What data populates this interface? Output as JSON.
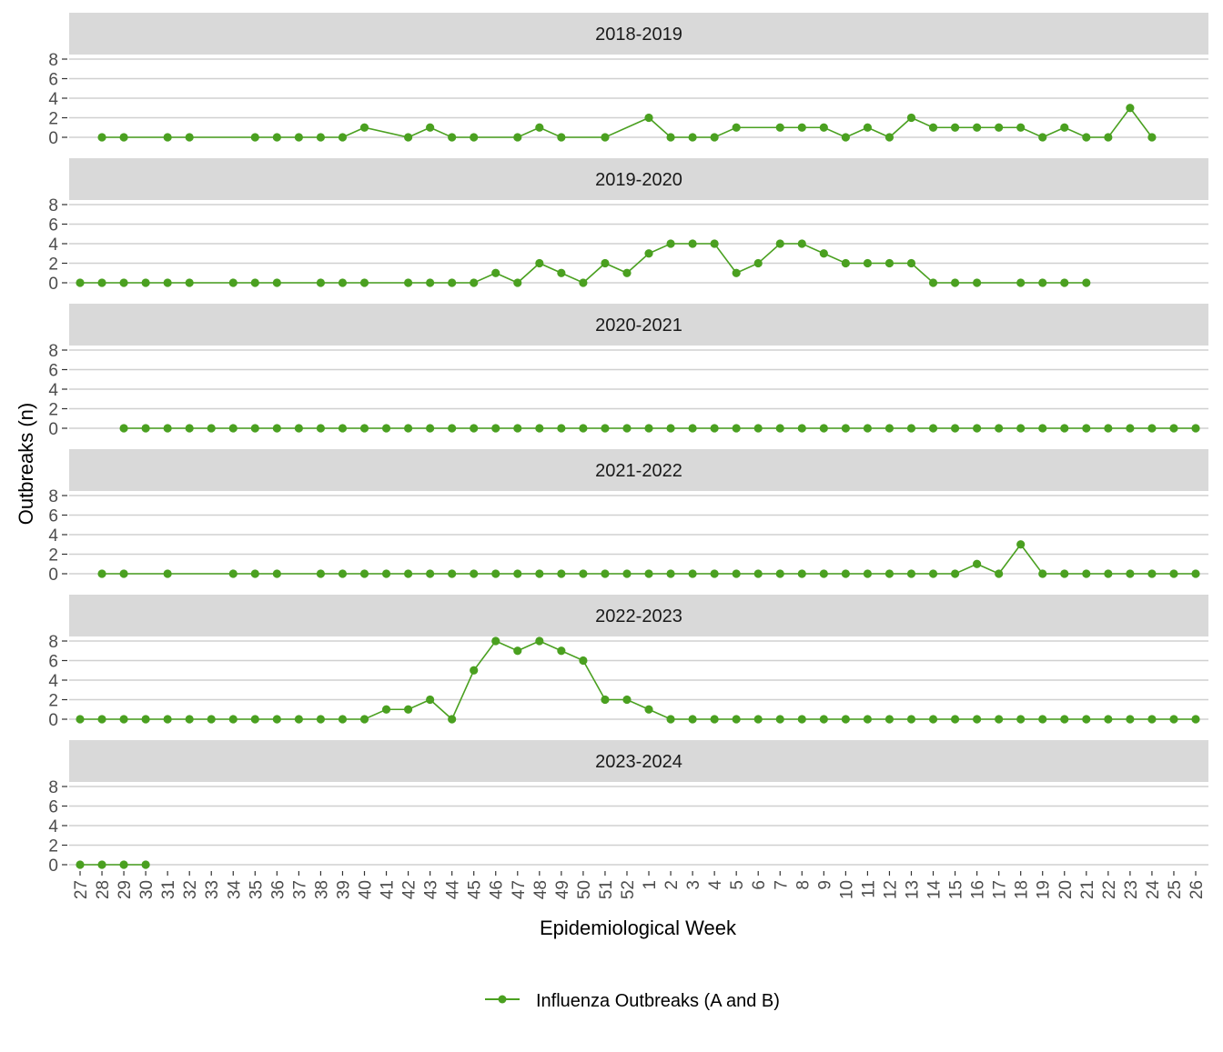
{
  "chart_data": {
    "type": "line",
    "layout": "faceted",
    "xlabel": "Epidemiological Week",
    "ylabel": "Outbreaks (n)",
    "yticks": [
      0,
      2,
      4,
      6,
      8
    ],
    "ylim": [
      0,
      8
    ],
    "x_categories": [
      "27",
      "28",
      "29",
      "30",
      "31",
      "32",
      "33",
      "34",
      "35",
      "36",
      "37",
      "38",
      "39",
      "40",
      "41",
      "42",
      "43",
      "44",
      "45",
      "46",
      "47",
      "48",
      "49",
      "50",
      "51",
      "52",
      "1",
      "2",
      "3",
      "4",
      "5",
      "6",
      "7",
      "8",
      "9",
      "10",
      "11",
      "12",
      "13",
      "14",
      "15",
      "16",
      "17",
      "18",
      "19",
      "20",
      "21",
      "22",
      "23",
      "24",
      "25",
      "26"
    ],
    "grid": true,
    "legend": {
      "position": "bottom",
      "entries": [
        {
          "label": "Influenza Outbreaks (A and B)",
          "color": "#4aa020"
        }
      ]
    },
    "series_color": "#4aa020",
    "facets": [
      {
        "season": "2018-2019",
        "points": [
          [
            "28",
            0
          ],
          [
            "29",
            0
          ],
          [
            "31",
            0
          ],
          [
            "32",
            0
          ],
          [
            "35",
            0
          ],
          [
            "36",
            0
          ],
          [
            "37",
            0
          ],
          [
            "38",
            0
          ],
          [
            "39",
            0
          ],
          [
            "40",
            1
          ],
          [
            "42",
            0
          ],
          [
            "43",
            1
          ],
          [
            "44",
            0
          ],
          [
            "45",
            0
          ],
          [
            "47",
            0
          ],
          [
            "48",
            1
          ],
          [
            "49",
            0
          ],
          [
            "51",
            0
          ],
          [
            "1",
            2
          ],
          [
            "2",
            0
          ],
          [
            "3",
            0
          ],
          [
            "4",
            0
          ],
          [
            "5",
            1
          ],
          [
            "7",
            1
          ],
          [
            "8",
            1
          ],
          [
            "9",
            1
          ],
          [
            "10",
            0
          ],
          [
            "11",
            1
          ],
          [
            "12",
            0
          ],
          [
            "13",
            2
          ],
          [
            "14",
            1
          ],
          [
            "15",
            1
          ],
          [
            "16",
            1
          ],
          [
            "17",
            1
          ],
          [
            "18",
            1
          ],
          [
            "19",
            0
          ],
          [
            "20",
            1
          ],
          [
            "21",
            0
          ],
          [
            "22",
            0
          ],
          [
            "23",
            3
          ],
          [
            "24",
            0
          ]
        ]
      },
      {
        "season": "2019-2020",
        "points": [
          [
            "27",
            0
          ],
          [
            "28",
            0
          ],
          [
            "29",
            0
          ],
          [
            "30",
            0
          ],
          [
            "31",
            0
          ],
          [
            "32",
            0
          ],
          [
            "34",
            0
          ],
          [
            "35",
            0
          ],
          [
            "36",
            0
          ],
          [
            "38",
            0
          ],
          [
            "39",
            0
          ],
          [
            "40",
            0
          ],
          [
            "42",
            0
          ],
          [
            "43",
            0
          ],
          [
            "44",
            0
          ],
          [
            "45",
            0
          ],
          [
            "46",
            1
          ],
          [
            "47",
            0
          ],
          [
            "48",
            2
          ],
          [
            "49",
            1
          ],
          [
            "50",
            0
          ],
          [
            "51",
            2
          ],
          [
            "52",
            1
          ],
          [
            "1",
            3
          ],
          [
            "2",
            4
          ],
          [
            "3",
            4
          ],
          [
            "4",
            4
          ],
          [
            "5",
            1
          ],
          [
            "6",
            2
          ],
          [
            "7",
            4
          ],
          [
            "8",
            4
          ],
          [
            "9",
            3
          ],
          [
            "10",
            2
          ],
          [
            "11",
            2
          ],
          [
            "12",
            2
          ],
          [
            "13",
            2
          ],
          [
            "14",
            0
          ],
          [
            "15",
            0
          ],
          [
            "16",
            0
          ],
          [
            "18",
            0
          ],
          [
            "19",
            0
          ],
          [
            "20",
            0
          ],
          [
            "21",
            0
          ]
        ]
      },
      {
        "season": "2020-2021",
        "points": [
          [
            "29",
            0
          ],
          [
            "30",
            0
          ],
          [
            "31",
            0
          ],
          [
            "32",
            0
          ],
          [
            "33",
            0
          ],
          [
            "34",
            0
          ],
          [
            "35",
            0
          ],
          [
            "36",
            0
          ],
          [
            "37",
            0
          ],
          [
            "38",
            0
          ],
          [
            "39",
            0
          ],
          [
            "40",
            0
          ],
          [
            "41",
            0
          ],
          [
            "42",
            0
          ],
          [
            "43",
            0
          ],
          [
            "44",
            0
          ],
          [
            "45",
            0
          ],
          [
            "46",
            0
          ],
          [
            "47",
            0
          ],
          [
            "48",
            0
          ],
          [
            "49",
            0
          ],
          [
            "50",
            0
          ],
          [
            "51",
            0
          ],
          [
            "52",
            0
          ],
          [
            "1",
            0
          ],
          [
            "2",
            0
          ],
          [
            "3",
            0
          ],
          [
            "4",
            0
          ],
          [
            "5",
            0
          ],
          [
            "6",
            0
          ],
          [
            "7",
            0
          ],
          [
            "8",
            0
          ],
          [
            "9",
            0
          ],
          [
            "10",
            0
          ],
          [
            "11",
            0
          ],
          [
            "12",
            0
          ],
          [
            "13",
            0
          ],
          [
            "14",
            0
          ],
          [
            "15",
            0
          ],
          [
            "16",
            0
          ],
          [
            "17",
            0
          ],
          [
            "18",
            0
          ],
          [
            "19",
            0
          ],
          [
            "20",
            0
          ],
          [
            "21",
            0
          ],
          [
            "22",
            0
          ],
          [
            "23",
            0
          ],
          [
            "24",
            0
          ],
          [
            "25",
            0
          ],
          [
            "26",
            0
          ]
        ]
      },
      {
        "season": "2021-2022",
        "points": [
          [
            "28",
            0
          ],
          [
            "29",
            0
          ],
          [
            "31",
            0
          ],
          [
            "34",
            0
          ],
          [
            "35",
            0
          ],
          [
            "36",
            0
          ],
          [
            "38",
            0
          ],
          [
            "39",
            0
          ],
          [
            "40",
            0
          ],
          [
            "41",
            0
          ],
          [
            "42",
            0
          ],
          [
            "43",
            0
          ],
          [
            "44",
            0
          ],
          [
            "45",
            0
          ],
          [
            "46",
            0
          ],
          [
            "47",
            0
          ],
          [
            "48",
            0
          ],
          [
            "49",
            0
          ],
          [
            "50",
            0
          ],
          [
            "51",
            0
          ],
          [
            "52",
            0
          ],
          [
            "1",
            0
          ],
          [
            "2",
            0
          ],
          [
            "3",
            0
          ],
          [
            "4",
            0
          ],
          [
            "5",
            0
          ],
          [
            "6",
            0
          ],
          [
            "7",
            0
          ],
          [
            "8",
            0
          ],
          [
            "9",
            0
          ],
          [
            "10",
            0
          ],
          [
            "11",
            0
          ],
          [
            "12",
            0
          ],
          [
            "13",
            0
          ],
          [
            "14",
            0
          ],
          [
            "15",
            0
          ],
          [
            "16",
            1
          ],
          [
            "17",
            0
          ],
          [
            "18",
            3
          ],
          [
            "19",
            0
          ],
          [
            "20",
            0
          ],
          [
            "21",
            0
          ],
          [
            "22",
            0
          ],
          [
            "23",
            0
          ],
          [
            "24",
            0
          ],
          [
            "25",
            0
          ],
          [
            "26",
            0
          ]
        ]
      },
      {
        "season": "2022-2023",
        "points": [
          [
            "27",
            0
          ],
          [
            "28",
            0
          ],
          [
            "29",
            0
          ],
          [
            "30",
            0
          ],
          [
            "31",
            0
          ],
          [
            "32",
            0
          ],
          [
            "33",
            0
          ],
          [
            "34",
            0
          ],
          [
            "35",
            0
          ],
          [
            "36",
            0
          ],
          [
            "37",
            0
          ],
          [
            "38",
            0
          ],
          [
            "39",
            0
          ],
          [
            "40",
            0
          ],
          [
            "41",
            1
          ],
          [
            "42",
            1
          ],
          [
            "43",
            2
          ],
          [
            "44",
            0
          ],
          [
            "45",
            5
          ],
          [
            "46",
            8
          ],
          [
            "47",
            7
          ],
          [
            "48",
            8
          ],
          [
            "49",
            7
          ],
          [
            "50",
            6
          ],
          [
            "51",
            2
          ],
          [
            "52",
            2
          ],
          [
            "1",
            1
          ],
          [
            "2",
            0
          ],
          [
            "3",
            0
          ],
          [
            "4",
            0
          ],
          [
            "5",
            0
          ],
          [
            "6",
            0
          ],
          [
            "7",
            0
          ],
          [
            "8",
            0
          ],
          [
            "9",
            0
          ],
          [
            "10",
            0
          ],
          [
            "11",
            0
          ],
          [
            "12",
            0
          ],
          [
            "13",
            0
          ],
          [
            "14",
            0
          ],
          [
            "15",
            0
          ],
          [
            "16",
            0
          ],
          [
            "17",
            0
          ],
          [
            "18",
            0
          ],
          [
            "19",
            0
          ],
          [
            "20",
            0
          ],
          [
            "21",
            0
          ],
          [
            "22",
            0
          ],
          [
            "23",
            0
          ],
          [
            "24",
            0
          ],
          [
            "25",
            0
          ],
          [
            "26",
            0
          ]
        ]
      },
      {
        "season": "2023-2024",
        "points": [
          [
            "27",
            0
          ],
          [
            "28",
            0
          ],
          [
            "29",
            0
          ],
          [
            "30",
            0
          ]
        ]
      }
    ]
  }
}
